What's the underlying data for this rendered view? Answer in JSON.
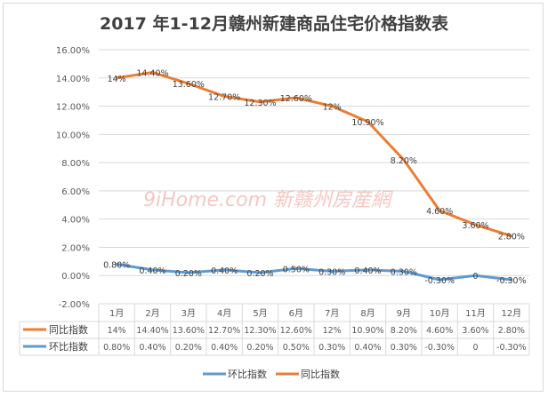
{
  "chart_data": {
    "type": "line",
    "title": "2017 年1-12月赣州新建商品住宅价格指数表",
    "categories": [
      "1月",
      "2月",
      "3月",
      "4月",
      "5月",
      "6月",
      "7月",
      "8月",
      "9月",
      "10月",
      "11月",
      "12月"
    ],
    "ylim": [
      -2,
      16
    ],
    "yticks": [
      "-2.00%",
      "0.00%",
      "2.00%",
      "4.00%",
      "6.00%",
      "8.00%",
      "10.00%",
      "12.00%",
      "14.00%",
      "16.00%"
    ],
    "grid": true,
    "legend_position": "bottom",
    "data_table": true,
    "series": [
      {
        "name": "同比指数",
        "color": "#ed7d31",
        "values": [
          14,
          14.4,
          13.6,
          12.7,
          12.3,
          12.6,
          12,
          10.9,
          8.2,
          4.6,
          3.6,
          2.8
        ],
        "labels": [
          "14%",
          "14.40%",
          "13.60%",
          "12.70%",
          "12.30%",
          "12.60%",
          "12%",
          "10.90%",
          "8.20%",
          "4.60%",
          "3.60%",
          "2.80%"
        ]
      },
      {
        "name": "环比指数",
        "color": "#5b9bd5",
        "values": [
          0.8,
          0.4,
          0.2,
          0.4,
          0.2,
          0.5,
          0.3,
          0.4,
          0.3,
          -0.3,
          0,
          -0.3
        ],
        "labels": [
          "0.80%",
          "0.40%",
          "0.20%",
          "0.40%",
          "0.20%",
          "0.50%",
          "0.30%",
          "0.40%",
          "0.30%",
          "-0.30%",
          "0",
          "-0.30%"
        ]
      }
    ],
    "legend_order": [
      "环比指数",
      "同比指数"
    ],
    "watermark": "9iHome.com 新赣州房産網"
  }
}
